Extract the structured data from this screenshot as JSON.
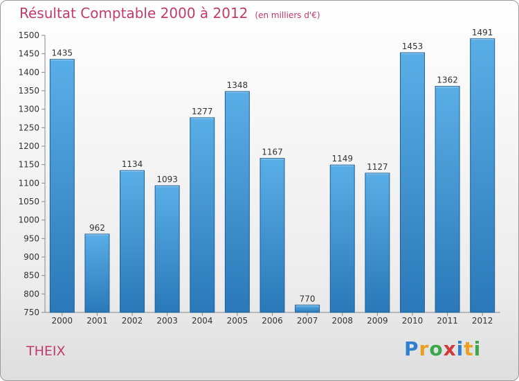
{
  "title": "Résultat Comptable 2000 à 2012",
  "subtitle": "(en milliers d'€)",
  "commune": "THEIX",
  "logo": "Proxiti",
  "colors": {
    "bar_light": "#5aaee6",
    "bar_dark": "#2a78b8",
    "title": "#c03a6a"
  },
  "chart_data": {
    "type": "bar",
    "title": "Résultat Comptable 2000 à 2012",
    "xlabel": "",
    "ylabel": "(en milliers d'€)",
    "categories": [
      "2000",
      "2001",
      "2002",
      "2003",
      "2004",
      "2005",
      "2006",
      "2007",
      "2008",
      "2009",
      "2010",
      "2011",
      "2012"
    ],
    "values": [
      1435,
      962,
      1134,
      1093,
      1277,
      1348,
      1167,
      770,
      1149,
      1127,
      1453,
      1362,
      1491
    ],
    "ylim": [
      750,
      1500
    ],
    "yticks": [
      750,
      800,
      850,
      900,
      950,
      1000,
      1050,
      1100,
      1150,
      1200,
      1250,
      1300,
      1350,
      1400,
      1450,
      1500
    ],
    "grid": false
  }
}
